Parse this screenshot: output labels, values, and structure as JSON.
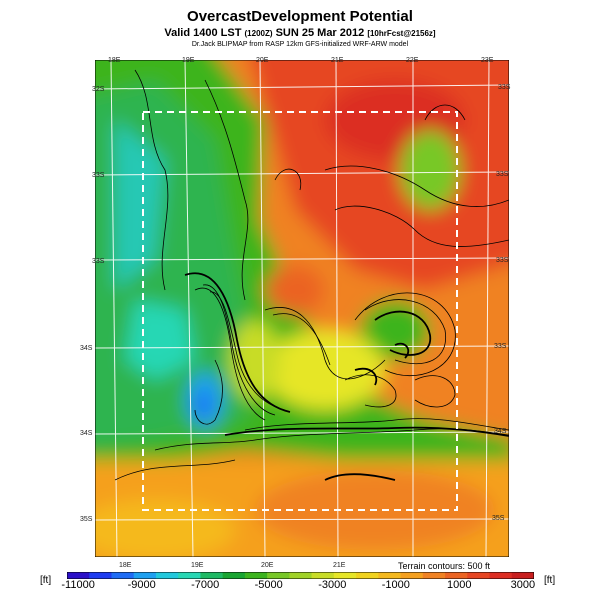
{
  "header": {
    "title": "OvercastDevelopment Potential",
    "valid": "Valid 1400 LST",
    "time_small": "(1200Z)",
    "date": "SUN 25 Mar 2012",
    "run_small": "[10hrFcst@2156z]",
    "credit": "Dr.Jack BLIPMAP from RASP 12km GFS-initialized WRF-ARW model"
  },
  "map": {
    "lon_top": [
      "18E",
      "19E",
      "20E",
      "21E",
      "22E",
      "23E"
    ],
    "lon_bottom": [
      "18E",
      "19E",
      "20E",
      "21E"
    ],
    "lat_left": [
      "32S",
      "33S",
      "33S",
      "34S",
      "34S",
      "35S"
    ],
    "lat_right": [
      "33S",
      "33S",
      "33S",
      "33S",
      "34S",
      "35S"
    ],
    "contour_note": "Terrain contours: 500 ft"
  },
  "colorbar": {
    "unit_left": "[ft]",
    "unit_right": "[ft]",
    "labels": [
      "-11000",
      "-9000",
      "-7000",
      "-5000",
      "-3000",
      "-1000",
      "1000",
      "3000"
    ],
    "colors": [
      "#2b10c8",
      "#1e3cf0",
      "#1e6cf5",
      "#1ea0f0",
      "#22c8dc",
      "#28d7b4",
      "#1fb964",
      "#19a532",
      "#3cb41e",
      "#78c828",
      "#a0d228",
      "#c8dc28",
      "#e6e628",
      "#f0d21e",
      "#f5b91e",
      "#f5a01e",
      "#f08223",
      "#eb6423",
      "#e64623",
      "#dc2d23",
      "#c81e1e"
    ]
  }
}
